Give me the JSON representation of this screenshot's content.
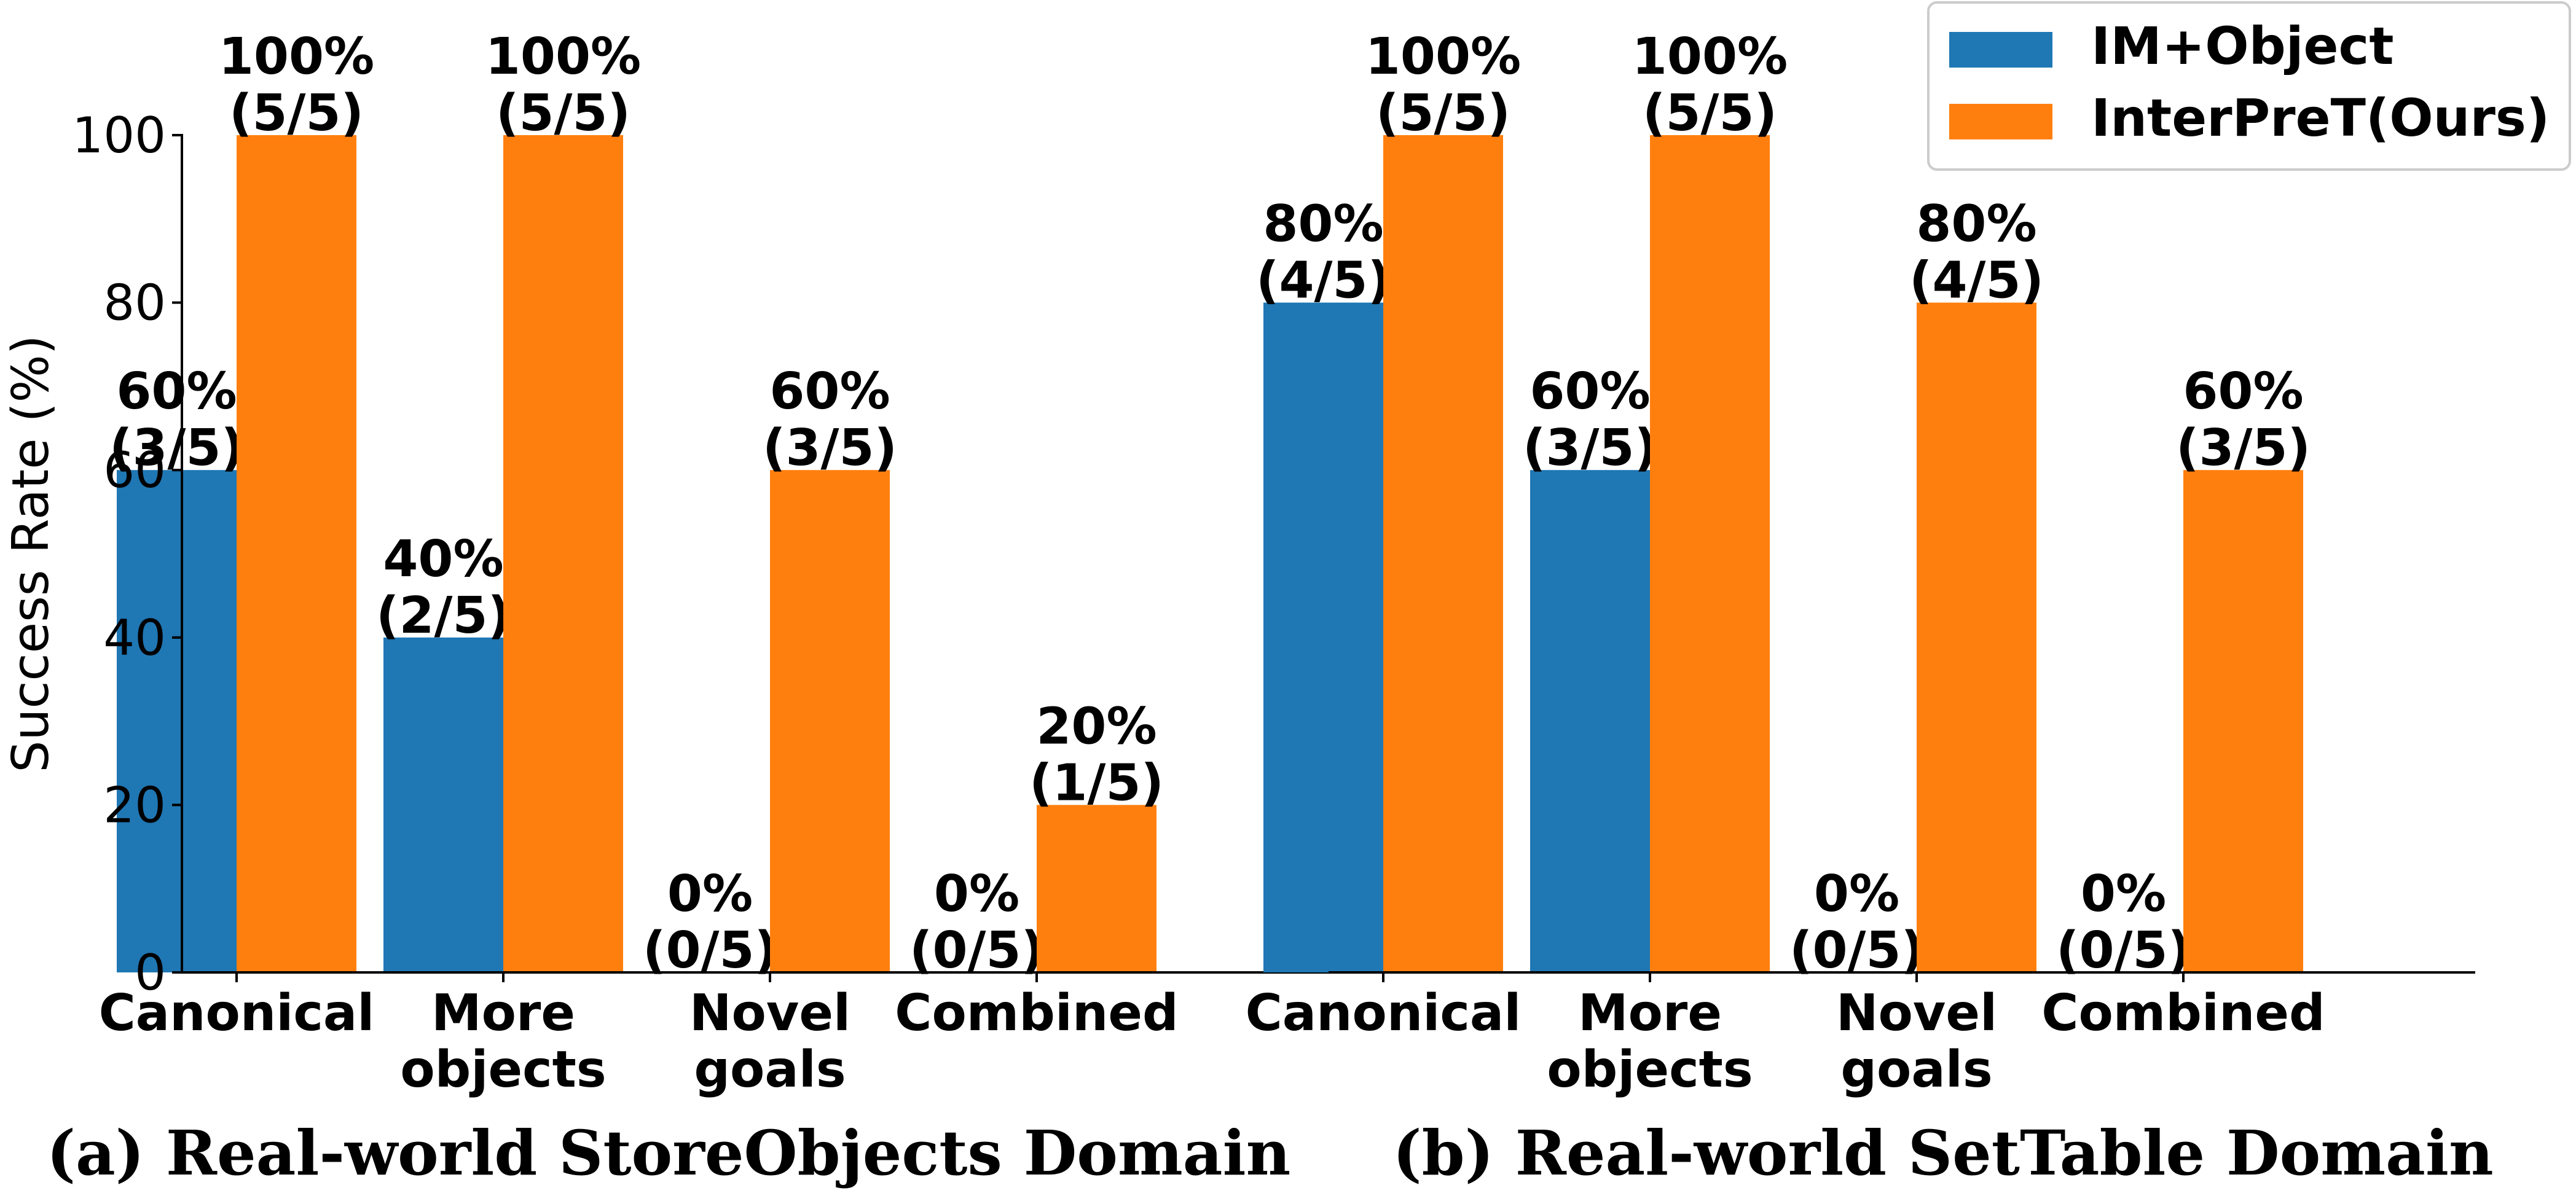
{
  "chart_data": [
    {
      "type": "bar",
      "title": "(a) Real-world StoreObjects Domain",
      "xlabel": "",
      "ylabel": "Success Rate (%)",
      "ylim": [
        0,
        100
      ],
      "yticks": [
        "0",
        "20",
        "40",
        "60",
        "80",
        "100"
      ],
      "categories": [
        "Canonical",
        "More objects",
        "Novel goals",
        "Combined"
      ],
      "series": [
        {
          "name": "IM+Object",
          "color": "#1f77b4",
          "values": [
            60,
            40,
            0,
            0
          ],
          "labels": [
            [
              "60%",
              "(3/5)"
            ],
            [
              "40%",
              "(2/5)"
            ],
            [
              "0%",
              "(0/5)"
            ],
            [
              "0%",
              "(0/5)"
            ]
          ]
        },
        {
          "name": "InterPreT(Ours)",
          "color": "#ff7f0e",
          "values": [
            100,
            100,
            60,
            20
          ],
          "labels": [
            [
              "100%",
              "(5/5)"
            ],
            [
              "100%",
              "(5/5)"
            ],
            [
              "60%",
              "(3/5)"
            ],
            [
              "20%",
              "(1/5)"
            ]
          ]
        }
      ]
    },
    {
      "type": "bar",
      "title": "(b) Real-world SetTable Domain",
      "xlabel": "",
      "ylabel": "",
      "ylim": [
        0,
        100
      ],
      "categories": [
        "Canonical",
        "More objects",
        "Novel goals",
        "Combined"
      ],
      "series": [
        {
          "name": "IM+Object",
          "color": "#1f77b4",
          "values": [
            80,
            60,
            0,
            0
          ],
          "labels": [
            [
              "80%",
              "(4/5)"
            ],
            [
              "60%",
              "(3/5)"
            ],
            [
              "0%",
              "(0/5)"
            ],
            [
              "0%",
              "(0/5)"
            ]
          ]
        },
        {
          "name": "InterPreT(Ours)",
          "color": "#ff7f0e",
          "values": [
            100,
            100,
            80,
            60
          ],
          "labels": [
            [
              "100%",
              "(5/5)"
            ],
            [
              "100%",
              "(5/5)"
            ],
            [
              "80%",
              "(4/5)"
            ],
            [
              "60%",
              "(3/5)"
            ]
          ]
        }
      ]
    }
  ],
  "legend": {
    "position": "top-right",
    "entries": [
      {
        "name": "IM+Object",
        "color": "#1f77b4"
      },
      {
        "name": "InterPreT(Ours)",
        "color": "#ff7f0e"
      }
    ]
  },
  "category_lines": [
    [
      "Canonical"
    ],
    [
      "More",
      "objects"
    ],
    [
      "Novel",
      "goals"
    ],
    [
      "Combined"
    ]
  ]
}
